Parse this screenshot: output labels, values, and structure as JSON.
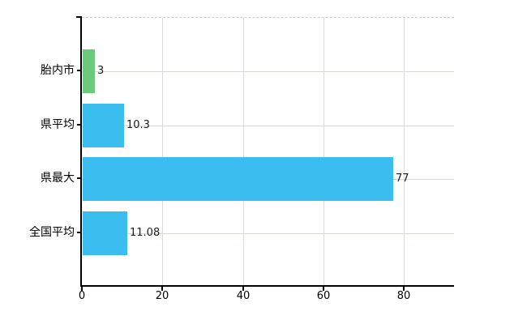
{
  "chart": {
    "background_color": "#ffffff",
    "axis_color": "#000000",
    "vertical_grid_color": "#dcd8de",
    "horizontal_grid_color": "#d5dbd3",
    "top_border_color": "#cfcacf",
    "text_color": "#000000",
    "value_text_color": "#1a1a1a"
  },
  "chart_data": {
    "type": "bar",
    "orientation": "horizontal",
    "title": "",
    "xlabel": "",
    "ylabel": "",
    "categories": [
      "胎内市",
      "県平均",
      "県最大",
      "全国平均"
    ],
    "values": [
      3,
      10.3,
      77,
      11.08
    ],
    "value_labels": [
      "3",
      "10.3",
      "77",
      "11.08"
    ],
    "bar_colors": [
      "#6cc87d",
      "#3cbdf0",
      "#3cbdf0",
      "#3cbdf0"
    ],
    "x_ticks": [
      0,
      20,
      40,
      60,
      80
    ],
    "x_tick_labels": [
      "0",
      "20",
      "40",
      "60",
      "80"
    ],
    "xlim": [
      0,
      92.4
    ],
    "grid": "on",
    "legend": "none"
  }
}
